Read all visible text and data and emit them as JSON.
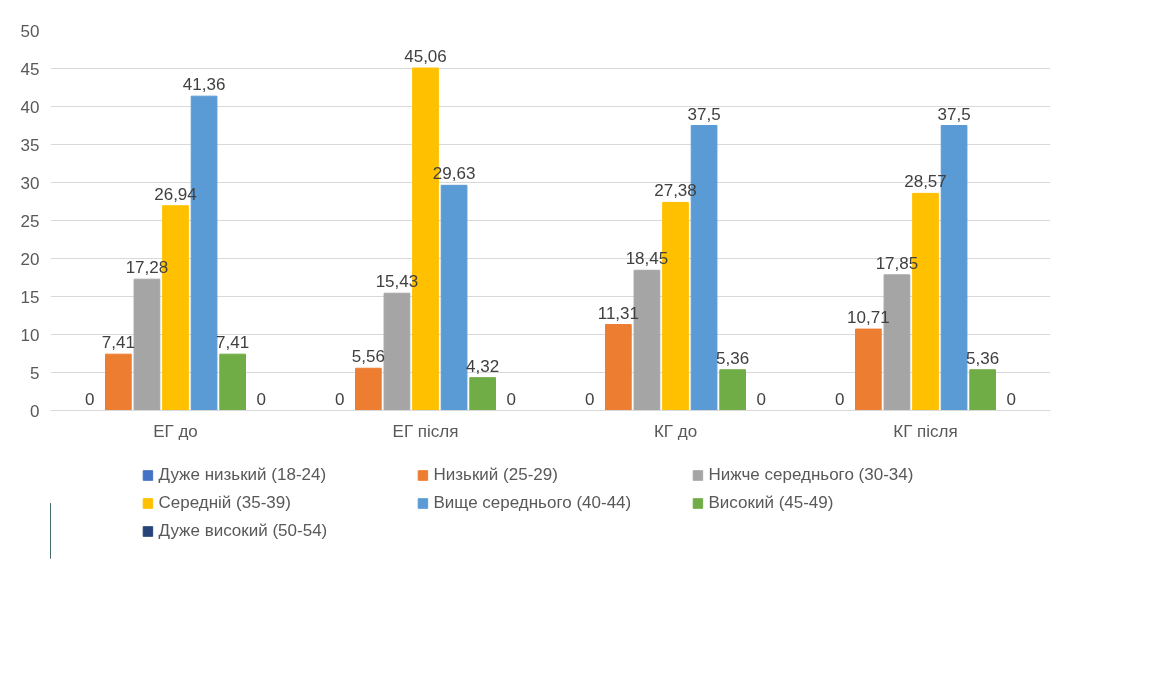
{
  "chart_data": {
    "type": "bar",
    "categories": [
      "ЕГ до",
      "ЕГ після",
      "КГ до",
      "КГ після"
    ],
    "ylim": [
      0,
      50
    ],
    "yticks": [
      0,
      5,
      10,
      15,
      20,
      25,
      30,
      35,
      40,
      45,
      50
    ],
    "grid": "y",
    "legend": "bottom",
    "data_labels": true,
    "series": [
      {
        "name": "Дуже низький (18-24)",
        "color": "#4472c4",
        "values": [
          0,
          0,
          0,
          0
        ],
        "value_labels": [
          "0",
          "0",
          "0",
          "0"
        ]
      },
      {
        "name": "Низький (25-29)",
        "color": "#ed7d31",
        "values": [
          7.41,
          5.56,
          11.31,
          10.71
        ],
        "value_labels": [
          "7,41",
          "5,56",
          "11,31",
          "10,71"
        ]
      },
      {
        "name": "Нижче середнього (30-34)",
        "color": "#a5a5a5",
        "values": [
          17.28,
          15.43,
          18.45,
          17.85
        ],
        "value_labels": [
          "17,28",
          "15,43",
          "18,45",
          "17,85"
        ]
      },
      {
        "name": "Середній (35-39)",
        "color": "#ffc000",
        "values": [
          26.94,
          45.06,
          27.38,
          28.57
        ],
        "value_labels": [
          "26,94",
          "45,06",
          "27,38",
          "28,57"
        ]
      },
      {
        "name": "Вище середнього (40-44)",
        "color": "#5b9bd5",
        "values": [
          41.36,
          29.63,
          37.5,
          37.5
        ],
        "value_labels": [
          "41,36",
          "29,63",
          "37,5",
          "37,5"
        ]
      },
      {
        "name": "Високий (45-49)",
        "color": "#70ad47",
        "values": [
          7.41,
          4.32,
          5.36,
          5.36
        ],
        "value_labels": [
          "7,41",
          "4,32",
          "5,36",
          "5,36"
        ]
      },
      {
        "name": "Дуже високий (50-54)",
        "color": "#264478",
        "values": [
          0,
          0,
          0,
          0
        ],
        "value_labels": [
          "0",
          "0",
          "0",
          "0"
        ]
      }
    ]
  }
}
